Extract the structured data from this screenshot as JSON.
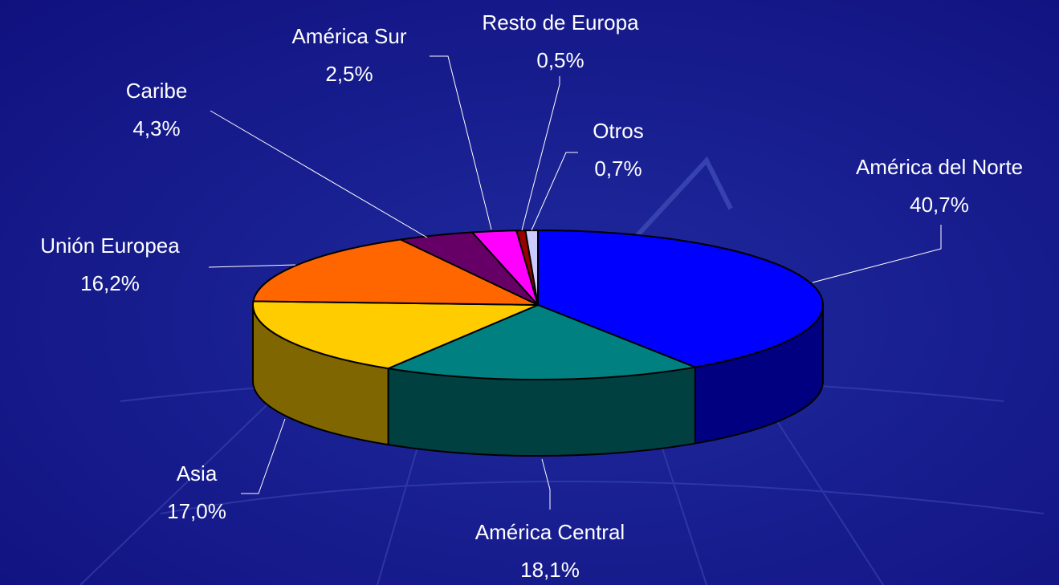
{
  "chart_data": {
    "type": "pie",
    "style": "3d",
    "categories": [
      "América del Norte",
      "América Central",
      "Asia",
      "Unión Europea",
      "Caribe",
      "América Sur",
      "Resto de Europa",
      "Otros"
    ],
    "values": [
      40.7,
      18.1,
      17.0,
      16.2,
      4.3,
      2.5,
      0.5,
      0.7
    ],
    "value_labels": [
      "40,7%",
      "18,1%",
      "17,0%",
      "16,2%",
      "4,3%",
      "2,5%",
      "0,5%",
      "0,7%"
    ],
    "colors": [
      "#0000ff",
      "#008080",
      "#ffcc00",
      "#ff6600",
      "#660066",
      "#ff00ff",
      "#990000",
      "#ccccff"
    ]
  }
}
